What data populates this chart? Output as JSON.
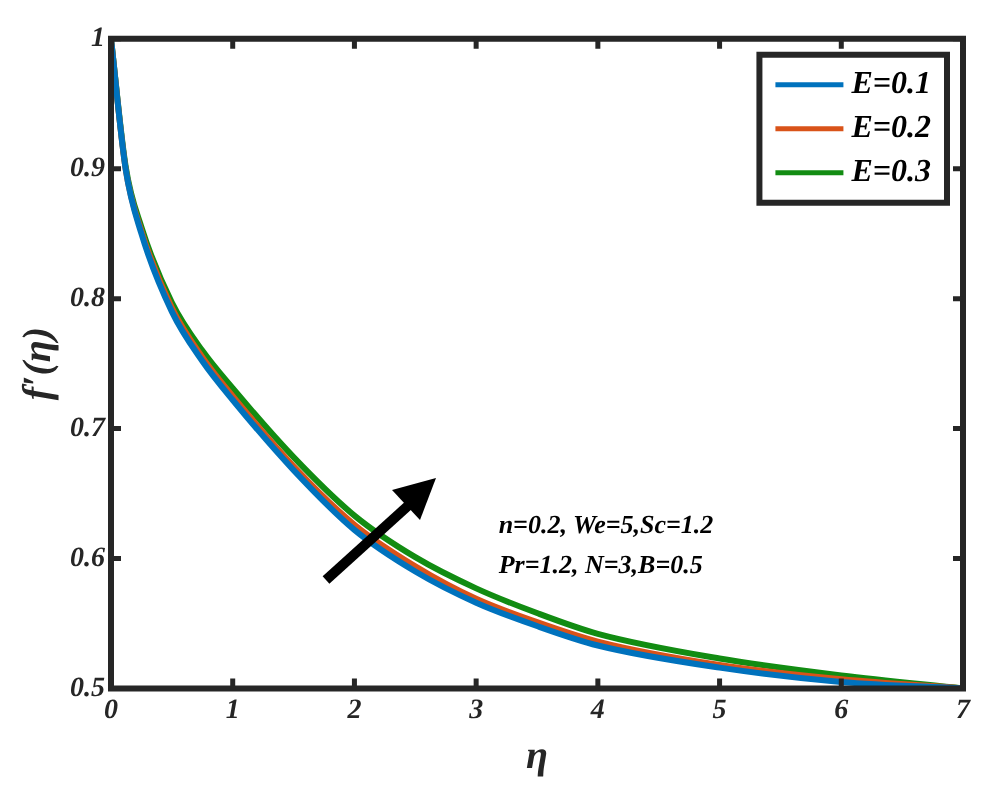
{
  "chart_data": {
    "type": "line",
    "xlabel": "η",
    "ylabel": "f′(η)",
    "x": [
      0,
      0.12,
      0.25,
      0.5,
      0.75,
      1,
      1.5,
      2,
      2.5,
      3,
      3.5,
      4,
      5,
      6,
      7
    ],
    "series": [
      {
        "name": "E=0.1",
        "color": "#0072bd",
        "values": [
          1,
          0.9,
          0.85,
          0.79,
          0.752,
          0.722,
          0.668,
          0.622,
          0.59,
          0.566,
          0.548,
          0.533,
          0.516,
          0.505,
          0.5
        ]
      },
      {
        "name": "E=0.2",
        "color": "#d95319",
        "values": [
          1,
          0.9,
          0.852,
          0.793,
          0.755,
          0.725,
          0.671,
          0.626,
          0.594,
          0.569,
          0.551,
          0.536,
          0.518,
          0.507,
          0.5
        ]
      },
      {
        "name": "E=0.3",
        "color": "#128c12",
        "values": [
          1,
          0.902,
          0.855,
          0.797,
          0.76,
          0.731,
          0.678,
          0.633,
          0.601,
          0.577,
          0.558,
          0.542,
          0.523,
          0.51,
          0.5
        ]
      }
    ],
    "xlim": [
      0,
      7
    ],
    "xticks": [
      0,
      1,
      2,
      3,
      4,
      5,
      6,
      7
    ],
    "ylim": [
      0.5,
      1
    ],
    "yticks": [
      0.5,
      0.6,
      0.7,
      0.8,
      0.9,
      1
    ],
    "legend": "top right",
    "grid": false,
    "marker": "none",
    "line_style": "solid",
    "annotations": [
      "n=0.2, We=5,Sc=1.2",
      "Pr=1.2, N=3,B=0.5"
    ]
  }
}
